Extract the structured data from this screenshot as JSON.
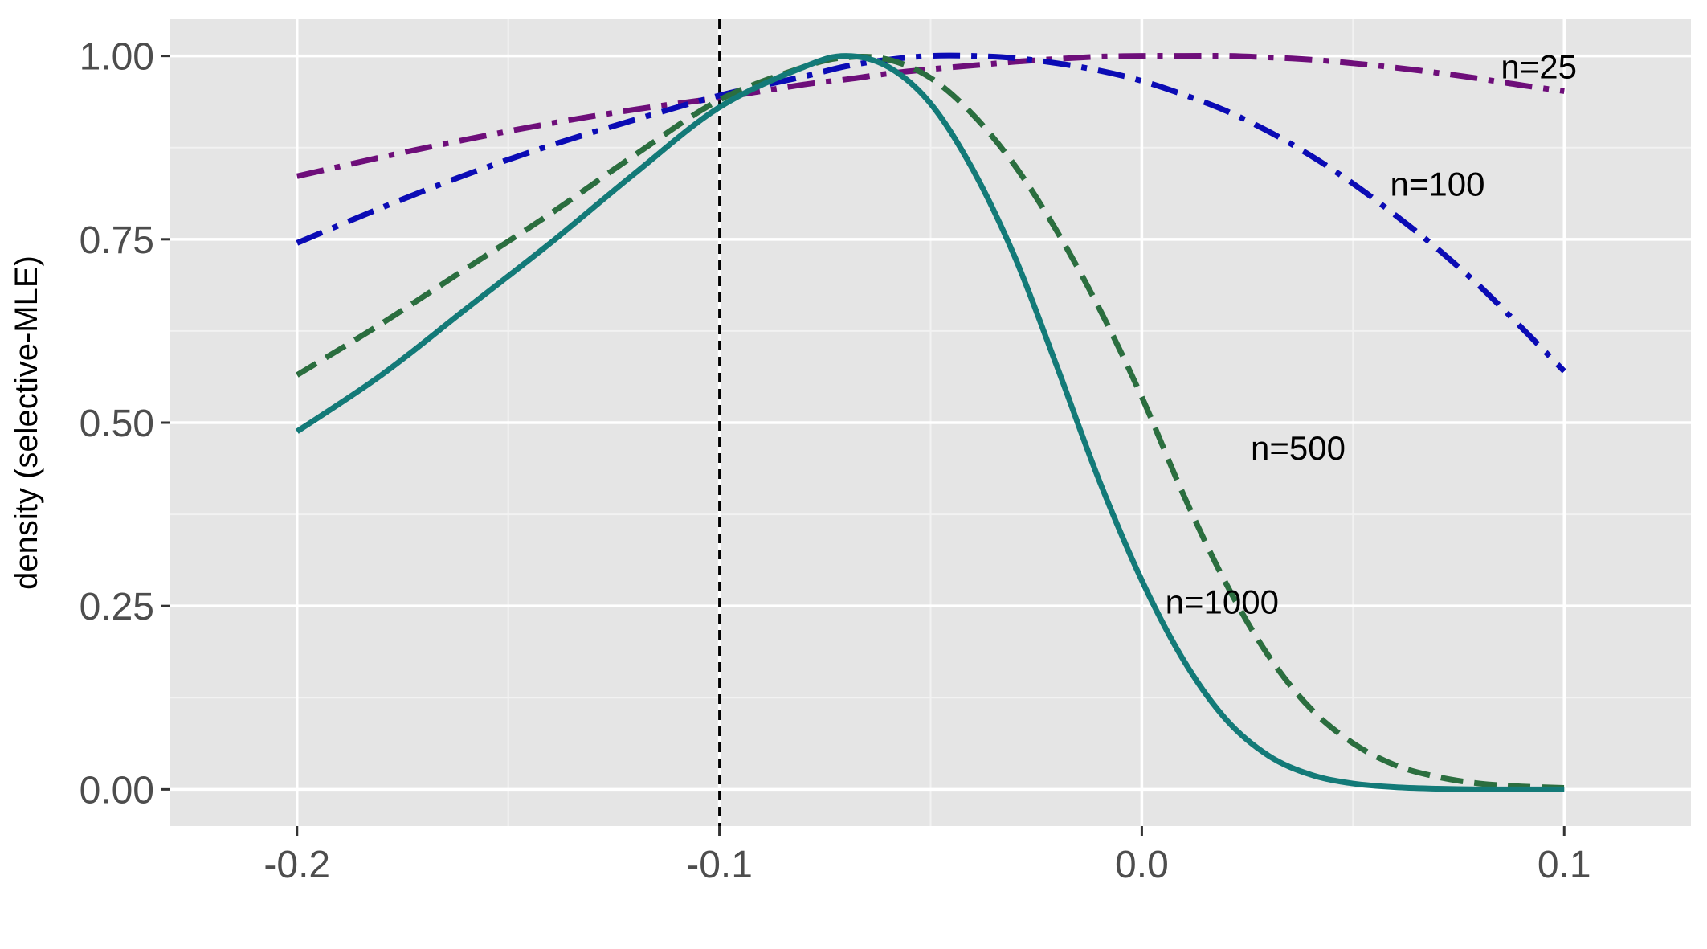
{
  "chart_data": {
    "type": "line",
    "title": "",
    "xlabel": "",
    "ylabel": "density (selective-MLE)",
    "xlim": [
      -0.23,
      0.13
    ],
    "ylim": [
      -0.05,
      1.05
    ],
    "x_ticks": [
      -0.2,
      -0.1,
      0.0,
      0.1
    ],
    "x_tick_labels": [
      "-0.2",
      "-0.1",
      "0.0",
      "0.1"
    ],
    "y_ticks": [
      0,
      0.25,
      0.5,
      0.75,
      1.0
    ],
    "y_tick_labels": [
      "0.00",
      "0.25",
      "0.50",
      "0.75",
      "1.00"
    ],
    "grid": true,
    "background": "#e5e5e5",
    "reference_line": {
      "x": -0.1,
      "style": "dashed",
      "color": "#000000"
    },
    "x": [
      -0.2,
      -0.18,
      -0.16,
      -0.14,
      -0.12,
      -0.1,
      -0.08,
      -0.07,
      -0.06,
      -0.05,
      -0.04,
      -0.03,
      -0.02,
      -0.01,
      0.0,
      0.01,
      0.02,
      0.03,
      0.04,
      0.05,
      0.06,
      0.07,
      0.08,
      0.09,
      0.1
    ],
    "series": [
      {
        "name": "n=25",
        "color": "#6e0e7a",
        "dash": "dashdot",
        "label_pos": [
          0.094,
          0.985
        ],
        "values": [
          0.836,
          0.862,
          0.886,
          0.908,
          0.927,
          0.943,
          0.961,
          0.968,
          0.976,
          0.982,
          0.987,
          0.992,
          0.996,
          0.999,
          1.0,
          1.0,
          1.0,
          0.998,
          0.995,
          0.99,
          0.984,
          0.977,
          0.969,
          0.96,
          0.952
        ]
      },
      {
        "name": "n=100",
        "color": "#0b0bb5",
        "dash": "dashdot",
        "label_pos": [
          0.07,
          0.825
        ],
        "values": [
          0.745,
          0.793,
          0.838,
          0.878,
          0.913,
          0.946,
          0.972,
          0.986,
          0.995,
          1.0,
          1.0,
          0.997,
          0.99,
          0.98,
          0.966,
          0.947,
          0.925,
          0.897,
          0.864,
          0.826,
          0.783,
          0.737,
          0.686,
          0.629,
          0.57
        ]
      },
      {
        "name": "n=500",
        "color": "#2b6e3f",
        "dash": "longdash",
        "label_pos": [
          0.037,
          0.465
        ],
        "values": [
          0.565,
          0.635,
          0.71,
          0.785,
          0.865,
          0.94,
          0.985,
          0.998,
          0.995,
          0.97,
          0.92,
          0.85,
          0.76,
          0.655,
          0.535,
          0.4,
          0.28,
          0.182,
          0.11,
          0.063,
          0.033,
          0.017,
          0.008,
          0.004,
          0.002
        ]
      },
      {
        "name": "n=1000",
        "color": "#137a78",
        "dash": "solid",
        "label_pos": [
          0.019,
          0.255
        ],
        "values": [
          0.488,
          0.565,
          0.655,
          0.745,
          0.84,
          0.93,
          0.985,
          1.0,
          0.985,
          0.935,
          0.845,
          0.725,
          0.575,
          0.42,
          0.285,
          0.175,
          0.095,
          0.046,
          0.02,
          0.008,
          0.003,
          0.001,
          0.0,
          0.0,
          0.0
        ]
      }
    ]
  }
}
